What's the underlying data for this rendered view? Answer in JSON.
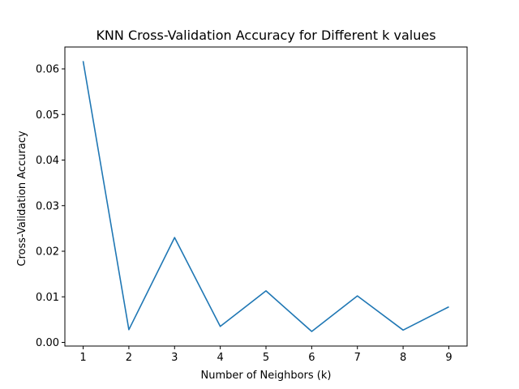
{
  "chart_data": {
    "type": "line",
    "title": "KNN Cross-Validation Accuracy for Different k values",
    "xlabel": "Number of Neighbors (k)",
    "ylabel": "Cross-Validation Accuracy",
    "x": [
      1,
      2,
      3,
      4,
      5,
      6,
      7,
      8,
      9
    ],
    "series": [
      {
        "values": [
          0.0617,
          0.0028,
          0.023,
          0.0035,
          0.0113,
          0.0024,
          0.0102,
          0.0027,
          0.0078
        ],
        "color": "#1f77b4"
      }
    ],
    "xticks": [
      "1",
      "2",
      "3",
      "4",
      "5",
      "6",
      "7",
      "8",
      "9"
    ],
    "yticks": [
      "0.00",
      "0.01",
      "0.02",
      "0.03",
      "0.04",
      "0.05",
      "0.06"
    ],
    "xlim": [
      0.6,
      9.4
    ],
    "ylim": [
      -0.0008,
      0.0648
    ],
    "grid": false
  }
}
